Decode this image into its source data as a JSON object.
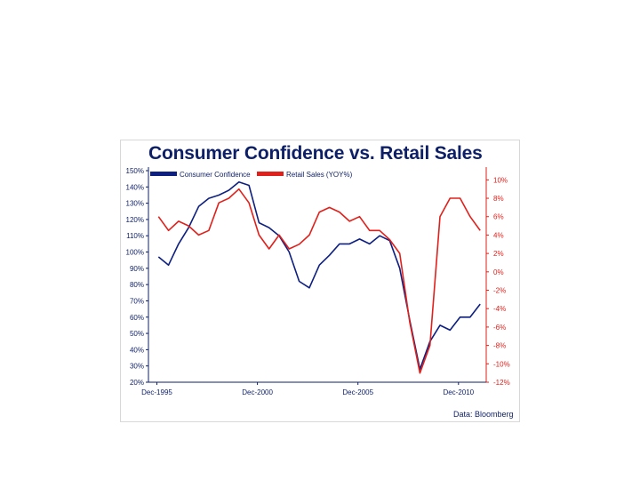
{
  "chart_data": {
    "type": "line",
    "title": "Consumer Confidence vs. Retail Sales",
    "source": "Data: Bloomberg",
    "x_ticks": [
      "Dec-1995",
      "Dec-2000",
      "Dec-2005",
      "Dec-2010"
    ],
    "x_tick_years": [
      1995.92,
      2000.92,
      2005.92,
      2010.92
    ],
    "xlim": [
      1995.5,
      2012.3
    ],
    "legend": {
      "placement": "top-left"
    },
    "grid": false,
    "y_left": {
      "ylim": [
        20,
        150
      ],
      "ticks": [
        150,
        140,
        130,
        120,
        110,
        100,
        90,
        80,
        70,
        60,
        50,
        40,
        30,
        20
      ],
      "tick_labels": [
        "150%",
        "140%",
        "130%",
        "120%",
        "110%",
        "100%",
        "90%",
        "80%",
        "70%",
        "60%",
        "50%",
        "40%",
        "30%",
        "20%"
      ]
    },
    "y_right": {
      "ylim": [
        -12,
        11
      ],
      "ticks": [
        10,
        8,
        6,
        4,
        2,
        0,
        -2,
        -4,
        -6,
        -8,
        -10,
        -12
      ],
      "tick_labels": [
        "10%",
        "8%",
        "6%",
        "4%",
        "2%",
        "0%",
        "-2%",
        "-4%",
        "-6%",
        "-8%",
        "-10%",
        "-12%"
      ],
      "color": "#e0201b"
    },
    "series": [
      {
        "name": "Consumer Confidence",
        "axis": "left",
        "color": "#0d1f80",
        "x": [
          1996.0,
          1996.5,
          1997.0,
          1997.5,
          1998.0,
          1998.5,
          1999.0,
          1999.5,
          2000.0,
          2000.5,
          2001.0,
          2001.5,
          2002.0,
          2002.5,
          2003.0,
          2003.5,
          2004.0,
          2004.5,
          2005.0,
          2005.5,
          2006.0,
          2006.5,
          2007.0,
          2007.5,
          2008.0,
          2008.5,
          2009.0,
          2009.5,
          2010.0,
          2010.5,
          2011.0,
          2011.5,
          2012.0
        ],
        "values": [
          97,
          92,
          105,
          115,
          128,
          133,
          135,
          138,
          143,
          141,
          118,
          115,
          110,
          100,
          82,
          78,
          92,
          98,
          105,
          105,
          108,
          105,
          110,
          107,
          90,
          58,
          28,
          45,
          55,
          52,
          60,
          60,
          68
        ]
      },
      {
        "name": "Retail Sales (YOY%)",
        "axis": "right",
        "color": "#e0201b",
        "x": [
          1996.0,
          1996.5,
          1997.0,
          1997.5,
          1998.0,
          1998.5,
          1999.0,
          1999.5,
          2000.0,
          2000.5,
          2001.0,
          2001.5,
          2002.0,
          2002.5,
          2003.0,
          2003.5,
          2004.0,
          2004.5,
          2005.0,
          2005.5,
          2006.0,
          2006.5,
          2007.0,
          2007.5,
          2008.0,
          2008.5,
          2009.0,
          2009.5,
          2010.0,
          2010.5,
          2011.0,
          2011.5,
          2012.0
        ],
        "values": [
          6,
          4.5,
          5.5,
          5,
          4,
          4.5,
          7.5,
          8,
          9,
          7.5,
          4,
          2.5,
          4,
          2.5,
          3,
          4,
          6.5,
          7,
          6.5,
          5.5,
          6,
          4.5,
          4.5,
          3.5,
          2,
          -5.5,
          -11,
          -8,
          6,
          8,
          8,
          6,
          4.5
        ]
      }
    ]
  }
}
